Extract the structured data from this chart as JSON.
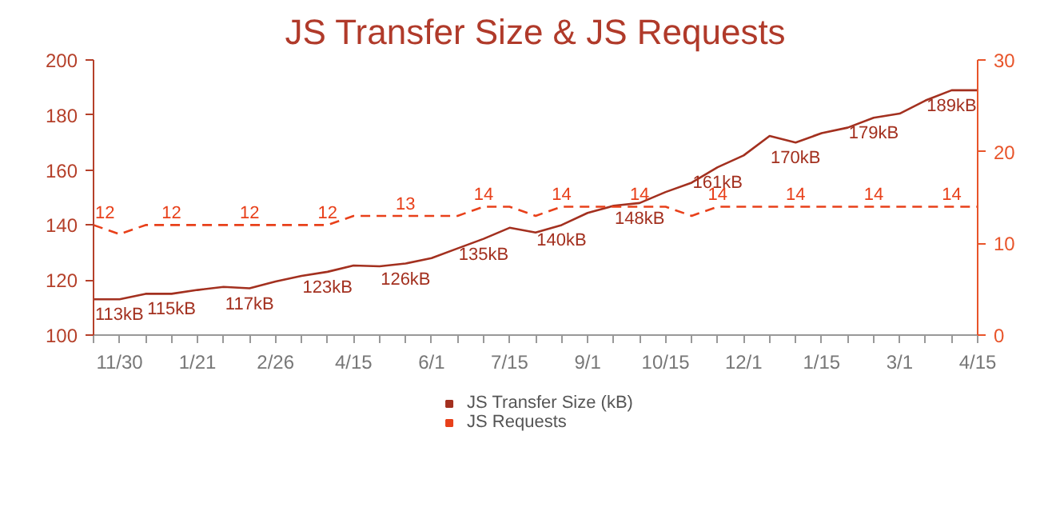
{
  "chart_data": {
    "type": "line",
    "title": "JS Transfer Size & JS Requests",
    "categories": [
      null,
      "11/30",
      null,
      null,
      "1/21",
      null,
      null,
      "2/26",
      null,
      null,
      "4/15",
      null,
      null,
      "6/1",
      null,
      null,
      "7/15",
      null,
      null,
      "9/1",
      null,
      null,
      "10/15",
      null,
      null,
      "12/1",
      null,
      null,
      "1/15",
      null,
      null,
      "3/1",
      null,
      null,
      "4/15"
    ],
    "series": [
      {
        "name": "JS Transfer Size (kB)",
        "color": "#a3301f",
        "line_style": "solid",
        "values": [
          113,
          113,
          115,
          115,
          116.4,
          117.5,
          117,
          119.5,
          121.5,
          123,
          125.3,
          125,
          126,
          128,
          131.5,
          135,
          139,
          137.3,
          140,
          144.4,
          147,
          148,
          152,
          155.4,
          161,
          165.3,
          172.4,
          170,
          173.4,
          175.4,
          179,
          180.5,
          185.3,
          189,
          189
        ],
        "value_labels": [
          "113kB",
          null,
          null,
          "115kB",
          null,
          null,
          "117kB",
          null,
          null,
          "123kB",
          null,
          null,
          "126kB",
          null,
          null,
          "135kB",
          null,
          null,
          "140kB",
          null,
          null,
          "148kB",
          null,
          null,
          "161kB",
          null,
          null,
          "170kB",
          null,
          null,
          "179kB",
          null,
          null,
          "189kB",
          null
        ]
      },
      {
        "name": "JS Requests",
        "color": "#e8401a",
        "axis": "y2",
        "line_style": "dashed",
        "values": [
          12,
          11,
          12,
          12,
          12,
          12,
          12,
          12,
          12,
          12,
          13,
          13,
          13,
          13,
          13,
          14,
          14,
          13,
          14,
          14,
          14,
          14,
          14,
          13,
          14,
          14,
          14,
          14,
          14,
          14,
          14,
          14,
          14,
          14,
          14
        ],
        "value_labels": [
          "12",
          null,
          null,
          "12",
          null,
          null,
          "12",
          null,
          null,
          "12",
          null,
          null,
          "13",
          null,
          null,
          "14",
          null,
          null,
          "14",
          null,
          null,
          "14",
          null,
          null,
          "14",
          null,
          null,
          "14",
          null,
          null,
          "14",
          null,
          null,
          "14",
          null
        ]
      }
    ],
    "ylim": [
      100,
      200
    ],
    "yticks": [
      100,
      120,
      140,
      160,
      180,
      200
    ],
    "y2lim": [
      0,
      30
    ],
    "y2ticks": [
      0,
      10,
      20,
      30
    ],
    "grid": false,
    "legend": "bottom",
    "marker": "none"
  }
}
